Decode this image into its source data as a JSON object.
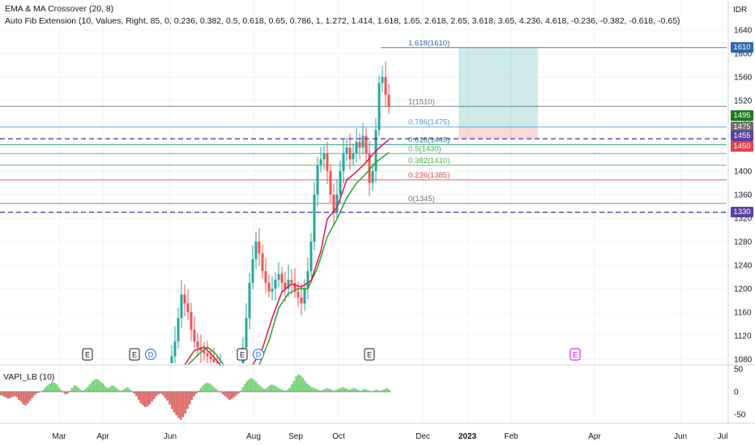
{
  "legend": {
    "line1": "EMA & MA Crossover (20, 8)",
    "line2": "Auto Fib Extension (10, Values, Right, 85, 0, 0.236, 0.382, 0.5, 0.618, 0.65, 0.786, 1, 1.272, 1.414, 1.618, 1.65, 2.618, 2.65, 3.618, 3.65, 4.236, 4.618, -0.236, -0.382, -0.618, -0.65)"
  },
  "currency": "IDR",
  "price_axis": {
    "min": 1060,
    "max": 1660,
    "ticks": [
      "1640",
      "1600",
      "1560",
      "1520",
      "1480",
      "1440",
      "1400",
      "1360",
      "1320",
      "1280",
      "1240",
      "1200",
      "1160",
      "1120",
      "1080"
    ]
  },
  "price_tags": [
    {
      "text": "1610",
      "value": 1610,
      "color": "#2a6aa8"
    },
    {
      "text": "1495",
      "value": 1495,
      "color": "#1b7a1b"
    },
    {
      "text": "1475",
      "value": 1475,
      "color": "#6d6d6d"
    },
    {
      "text": "1455",
      "value": 1455,
      "color": "#5b3fa0"
    },
    {
      "text": "1450",
      "value": 1450,
      "color": "#e0424b"
    },
    {
      "text": "1330",
      "value": 1330,
      "color": "#5b3fa0"
    }
  ],
  "fib_levels": [
    {
      "label": "1.618(1610)",
      "value": 1610,
      "color": "#2a6aa8"
    },
    {
      "label": "1(1510)",
      "value": 1510,
      "color": "#707070"
    },
    {
      "label": "0.786(1475)",
      "value": 1475,
      "color": "#4aa0c8"
    },
    {
      "label": "0.618(1445)",
      "value": 1445,
      "color": "#0a8a70"
    },
    {
      "label": "0.5(1430)",
      "value": 1430,
      "color": "#4caf50"
    },
    {
      "label": "0.382(1410)",
      "value": 1410,
      "color": "#4caf50"
    },
    {
      "label": "0.236(1385)",
      "value": 1385,
      "color": "#e0424b"
    },
    {
      "label": "0(1345)",
      "value": 1345,
      "color": "#707070"
    }
  ],
  "dashed_lines": [
    {
      "value": 1455,
      "color": "#3b2fa8"
    },
    {
      "value": 1330,
      "color": "#3b2fa8"
    }
  ],
  "time_axis": {
    "labels": [
      {
        "text": "Mar",
        "bold": false
      },
      {
        "text": "Apr",
        "bold": false
      },
      {
        "text": "Jun",
        "bold": false
      },
      {
        "text": "Aug",
        "bold": false
      },
      {
        "text": "Sep",
        "bold": false
      },
      {
        "text": "Oct",
        "bold": false
      },
      {
        "text": "Dec",
        "bold": false
      },
      {
        "text": "2023",
        "bold": true
      },
      {
        "text": "Feb",
        "bold": false
      },
      {
        "text": "Apr",
        "bold": false
      },
      {
        "text": "Jun",
        "bold": false
      },
      {
        "text": "Jul",
        "bold": false
      }
    ]
  },
  "events": [
    {
      "type": "E",
      "color": "#131722"
    },
    {
      "type": "E",
      "color": "#131722"
    },
    {
      "type": "D",
      "color": "#2962ff"
    },
    {
      "type": "E",
      "color": "#131722"
    },
    {
      "type": "D",
      "color": "#2962ff"
    },
    {
      "type": "E",
      "color": "#131722"
    },
    {
      "type": "E",
      "color": "#d500f9"
    }
  ],
  "indicator": {
    "label": "VAPI_LB (10)",
    "ticks": [
      "50",
      "0",
      "-50"
    ],
    "range": [
      -60,
      60
    ],
    "values": [
      -8,
      -10,
      -12,
      -15,
      -14,
      -12,
      -10,
      -12,
      -18,
      -22,
      -28,
      -30,
      -26,
      -20,
      -14,
      -8,
      -4,
      -2,
      0,
      4,
      10,
      14,
      18,
      22,
      20,
      16,
      10,
      4,
      -2,
      -6,
      -4,
      2,
      8,
      14,
      12,
      8,
      4,
      2,
      6,
      10,
      16,
      22,
      26,
      28,
      26,
      22,
      18,
      12,
      8,
      10,
      14,
      12,
      8,
      4,
      2,
      4,
      8,
      10,
      6,
      2,
      -4,
      -10,
      -18,
      -26,
      -30,
      -34,
      -32,
      -28,
      -22,
      -16,
      -10,
      -6,
      -4,
      -8,
      -14,
      -20,
      -28,
      -38,
      -46,
      -52,
      -58,
      -62,
      -56,
      -48,
      -38,
      -28,
      -18,
      -10,
      -4,
      2,
      8,
      14,
      18,
      20,
      18,
      14,
      10,
      6,
      2,
      -2,
      -6,
      -10,
      -14,
      -18,
      -16,
      -12,
      -8,
      -4,
      2,
      10,
      18,
      24,
      28,
      30,
      26,
      22,
      16,
      12,
      8,
      6,
      10,
      14,
      16,
      14,
      12,
      8,
      6,
      4,
      2,
      4,
      8,
      16,
      24,
      34,
      38,
      36,
      30,
      24,
      18,
      14,
      10,
      8,
      6,
      4,
      2,
      4,
      6,
      8,
      6,
      4,
      2,
      4,
      6,
      8,
      10,
      8,
      6,
      4,
      6,
      8,
      6,
      4,
      2,
      4,
      6,
      4,
      2,
      0,
      2,
      4,
      3,
      2,
      4,
      6,
      8,
      4
    ]
  },
  "trade_box": {
    "profit_top": 1610,
    "entry": 1475,
    "stop": 1455
  },
  "colors": {
    "up_candle": "#26a69a",
    "down_candle": "#ef5350",
    "ema_fast": "#e0144c",
    "ma_slow": "#2e9d2e",
    "histogram_pos": "#7fd47f",
    "histogram_neg": "#e07070"
  }
}
